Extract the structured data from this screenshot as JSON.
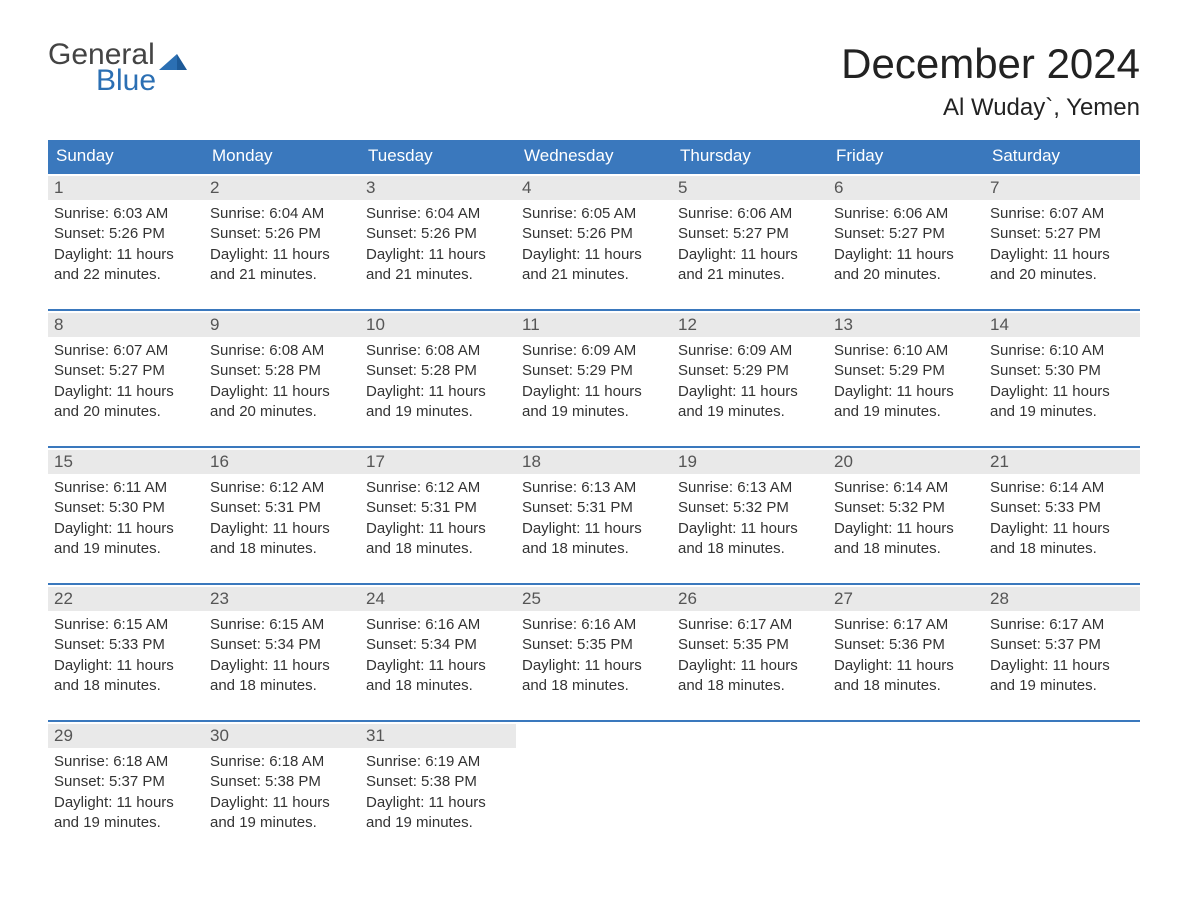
{
  "logo": {
    "word1": "General",
    "word2": "Blue",
    "accent_color": "#2b6fb3"
  },
  "title": "December 2024",
  "location": "Al Wuday`, Yemen",
  "colors": {
    "header_bg": "#3a78bd",
    "header_text": "#ffffff",
    "daynum_bg": "#e9e9e9",
    "text": "#333333",
    "week_border": "#3a78bd"
  },
  "weekdays": [
    "Sunday",
    "Monday",
    "Tuesday",
    "Wednesday",
    "Thursday",
    "Friday",
    "Saturday"
  ],
  "labels": {
    "sunrise": "Sunrise: ",
    "sunset": "Sunset: ",
    "daylight": "Daylight: "
  },
  "weeks": [
    [
      {
        "n": "1",
        "sunrise": "6:03 AM",
        "sunset": "5:26 PM",
        "daylight": "11 hours and 22 minutes."
      },
      {
        "n": "2",
        "sunrise": "6:04 AM",
        "sunset": "5:26 PM",
        "daylight": "11 hours and 21 minutes."
      },
      {
        "n": "3",
        "sunrise": "6:04 AM",
        "sunset": "5:26 PM",
        "daylight": "11 hours and 21 minutes."
      },
      {
        "n": "4",
        "sunrise": "6:05 AM",
        "sunset": "5:26 PM",
        "daylight": "11 hours and 21 minutes."
      },
      {
        "n": "5",
        "sunrise": "6:06 AM",
        "sunset": "5:27 PM",
        "daylight": "11 hours and 21 minutes."
      },
      {
        "n": "6",
        "sunrise": "6:06 AM",
        "sunset": "5:27 PM",
        "daylight": "11 hours and 20 minutes."
      },
      {
        "n": "7",
        "sunrise": "6:07 AM",
        "sunset": "5:27 PM",
        "daylight": "11 hours and 20 minutes."
      }
    ],
    [
      {
        "n": "8",
        "sunrise": "6:07 AM",
        "sunset": "5:27 PM",
        "daylight": "11 hours and 20 minutes."
      },
      {
        "n": "9",
        "sunrise": "6:08 AM",
        "sunset": "5:28 PM",
        "daylight": "11 hours and 20 minutes."
      },
      {
        "n": "10",
        "sunrise": "6:08 AM",
        "sunset": "5:28 PM",
        "daylight": "11 hours and 19 minutes."
      },
      {
        "n": "11",
        "sunrise": "6:09 AM",
        "sunset": "5:29 PM",
        "daylight": "11 hours and 19 minutes."
      },
      {
        "n": "12",
        "sunrise": "6:09 AM",
        "sunset": "5:29 PM",
        "daylight": "11 hours and 19 minutes."
      },
      {
        "n": "13",
        "sunrise": "6:10 AM",
        "sunset": "5:29 PM",
        "daylight": "11 hours and 19 minutes."
      },
      {
        "n": "14",
        "sunrise": "6:10 AM",
        "sunset": "5:30 PM",
        "daylight": "11 hours and 19 minutes."
      }
    ],
    [
      {
        "n": "15",
        "sunrise": "6:11 AM",
        "sunset": "5:30 PM",
        "daylight": "11 hours and 19 minutes."
      },
      {
        "n": "16",
        "sunrise": "6:12 AM",
        "sunset": "5:31 PM",
        "daylight": "11 hours and 18 minutes."
      },
      {
        "n": "17",
        "sunrise": "6:12 AM",
        "sunset": "5:31 PM",
        "daylight": "11 hours and 18 minutes."
      },
      {
        "n": "18",
        "sunrise": "6:13 AM",
        "sunset": "5:31 PM",
        "daylight": "11 hours and 18 minutes."
      },
      {
        "n": "19",
        "sunrise": "6:13 AM",
        "sunset": "5:32 PM",
        "daylight": "11 hours and 18 minutes."
      },
      {
        "n": "20",
        "sunrise": "6:14 AM",
        "sunset": "5:32 PM",
        "daylight": "11 hours and 18 minutes."
      },
      {
        "n": "21",
        "sunrise": "6:14 AM",
        "sunset": "5:33 PM",
        "daylight": "11 hours and 18 minutes."
      }
    ],
    [
      {
        "n": "22",
        "sunrise": "6:15 AM",
        "sunset": "5:33 PM",
        "daylight": "11 hours and 18 minutes."
      },
      {
        "n": "23",
        "sunrise": "6:15 AM",
        "sunset": "5:34 PM",
        "daylight": "11 hours and 18 minutes."
      },
      {
        "n": "24",
        "sunrise": "6:16 AM",
        "sunset": "5:34 PM",
        "daylight": "11 hours and 18 minutes."
      },
      {
        "n": "25",
        "sunrise": "6:16 AM",
        "sunset": "5:35 PM",
        "daylight": "11 hours and 18 minutes."
      },
      {
        "n": "26",
        "sunrise": "6:17 AM",
        "sunset": "5:35 PM",
        "daylight": "11 hours and 18 minutes."
      },
      {
        "n": "27",
        "sunrise": "6:17 AM",
        "sunset": "5:36 PM",
        "daylight": "11 hours and 18 minutes."
      },
      {
        "n": "28",
        "sunrise": "6:17 AM",
        "sunset": "5:37 PM",
        "daylight": "11 hours and 19 minutes."
      }
    ],
    [
      {
        "n": "29",
        "sunrise": "6:18 AM",
        "sunset": "5:37 PM",
        "daylight": "11 hours and 19 minutes."
      },
      {
        "n": "30",
        "sunrise": "6:18 AM",
        "sunset": "5:38 PM",
        "daylight": "11 hours and 19 minutes."
      },
      {
        "n": "31",
        "sunrise": "6:19 AM",
        "sunset": "5:38 PM",
        "daylight": "11 hours and 19 minutes."
      },
      null,
      null,
      null,
      null
    ]
  ]
}
